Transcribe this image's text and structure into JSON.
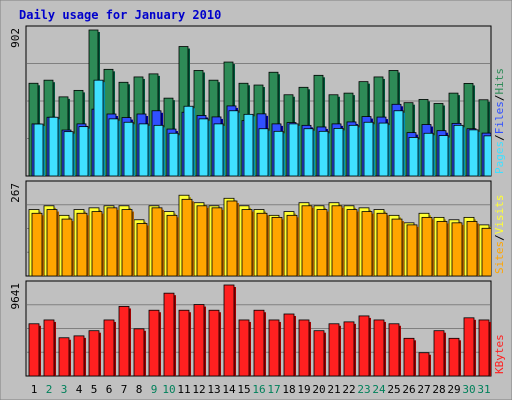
{
  "colors": {
    "background": "#c0c0c0",
    "title": "#0000cc",
    "hits_top": "#2e8b57",
    "hits_side": "#00573a",
    "files_top": "#3050ff",
    "files_side": "#0000aa",
    "pages_top": "#40e0ff",
    "pages_side": "#0090b0",
    "visits_top": "#ffff33",
    "visits_side": "#b0a000",
    "sites_top": "#ffa500",
    "sites_side": "#b06000",
    "kbytes_top": "#ff2020",
    "kbytes_side": "#a00000",
    "weekday_label": "#000000",
    "weekend_label": "#00805a"
  },
  "chart_data": {
    "type": "bar",
    "title": "Daily usage for January 2010",
    "categories": [
      "1",
      "2",
      "3",
      "4",
      "5",
      "6",
      "7",
      "8",
      "9",
      "10",
      "11",
      "12",
      "13",
      "14",
      "15",
      "16",
      "17",
      "18",
      "19",
      "20",
      "21",
      "22",
      "23",
      "24",
      "25",
      "26",
      "27",
      "28",
      "29",
      "30",
      "31"
    ],
    "weekend_days": [
      "2",
      "3",
      "9",
      "10",
      "16",
      "17",
      "23",
      "24",
      "30",
      "31"
    ],
    "panels": [
      {
        "name": "hits-files-pages",
        "scale_label": "902",
        "ymax": 902,
        "legend": [
          "Pages",
          "/",
          "Files",
          "/",
          "Hits"
        ],
        "series": [
          {
            "name": "Hits",
            "values": [
              573,
              592,
              489,
              529,
              902,
              659,
              579,
              612,
              631,
              481,
              800,
              652,
              592,
              704,
              573,
              562,
              641,
              502,
              548,
              622,
              502,
              512,
              583,
              612,
              652,
              453,
              473,
              448,
              512,
              572,
              471
            ]
          },
          {
            "name": "Files",
            "values": [
              322,
              363,
              284,
              322,
              413,
              383,
              361,
              383,
              403,
              290,
              394,
              374,
              365,
              433,
              342,
              384,
              322,
              330,
              313,
              303,
              322,
              334,
              367,
              364,
              443,
              268,
              318,
              280,
              325,
              292,
              265
            ]
          },
          {
            "name": "Pages",
            "values": [
              321,
              363,
              274,
              305,
              592,
              353,
              332,
              322,
              313,
              264,
              431,
              353,
              322,
              403,
              381,
              292,
              276,
              322,
              292,
              276,
              294,
              313,
              332,
              327,
              403,
              238,
              264,
              250,
              313,
              285,
              248
            ]
          }
        ]
      },
      {
        "name": "visits-sites",
        "scale_label": "267",
        "ymax": 267,
        "legend": [
          "Sites",
          "/",
          "Visits"
        ],
        "series": [
          {
            "name": "Visits",
            "values": [
              195,
              206,
              178,
              195,
              200,
              206,
              206,
              165,
              206,
              189,
              237,
              215,
              206,
              228,
              206,
              195,
              178,
              189,
              215,
              206,
              215,
              206,
              200,
              195,
              178,
              156,
              184,
              172,
              165,
              172,
              150
            ]
          },
          {
            "name": "Sites",
            "values": [
              184,
              195,
              167,
              184,
              189,
              200,
              195,
              154,
              200,
              178,
              225,
              206,
              200,
              220,
              195,
              184,
              172,
              178,
              206,
              195,
              206,
              195,
              189,
              184,
              167,
              150,
              172,
              160,
              156,
              160,
              140
            ]
          }
        ]
      },
      {
        "name": "kbytes",
        "scale_label": "9641",
        "ymax": 9641,
        "legend": [
          "KBytes"
        ],
        "series": [
          {
            "name": "KBytes",
            "values": [
              5534,
              5938,
              4053,
              4252,
              4800,
              5938,
              7369,
              5000,
              6968,
              8775,
              6968,
              7570,
              6968,
              9641,
              5938,
              6968,
              5938,
              6569,
              5938,
              4800,
              5534,
              5735,
              6366,
              5938,
              5534,
              3993,
              2466,
              4800,
              3993,
              6165,
              5938
            ]
          }
        ]
      }
    ]
  }
}
